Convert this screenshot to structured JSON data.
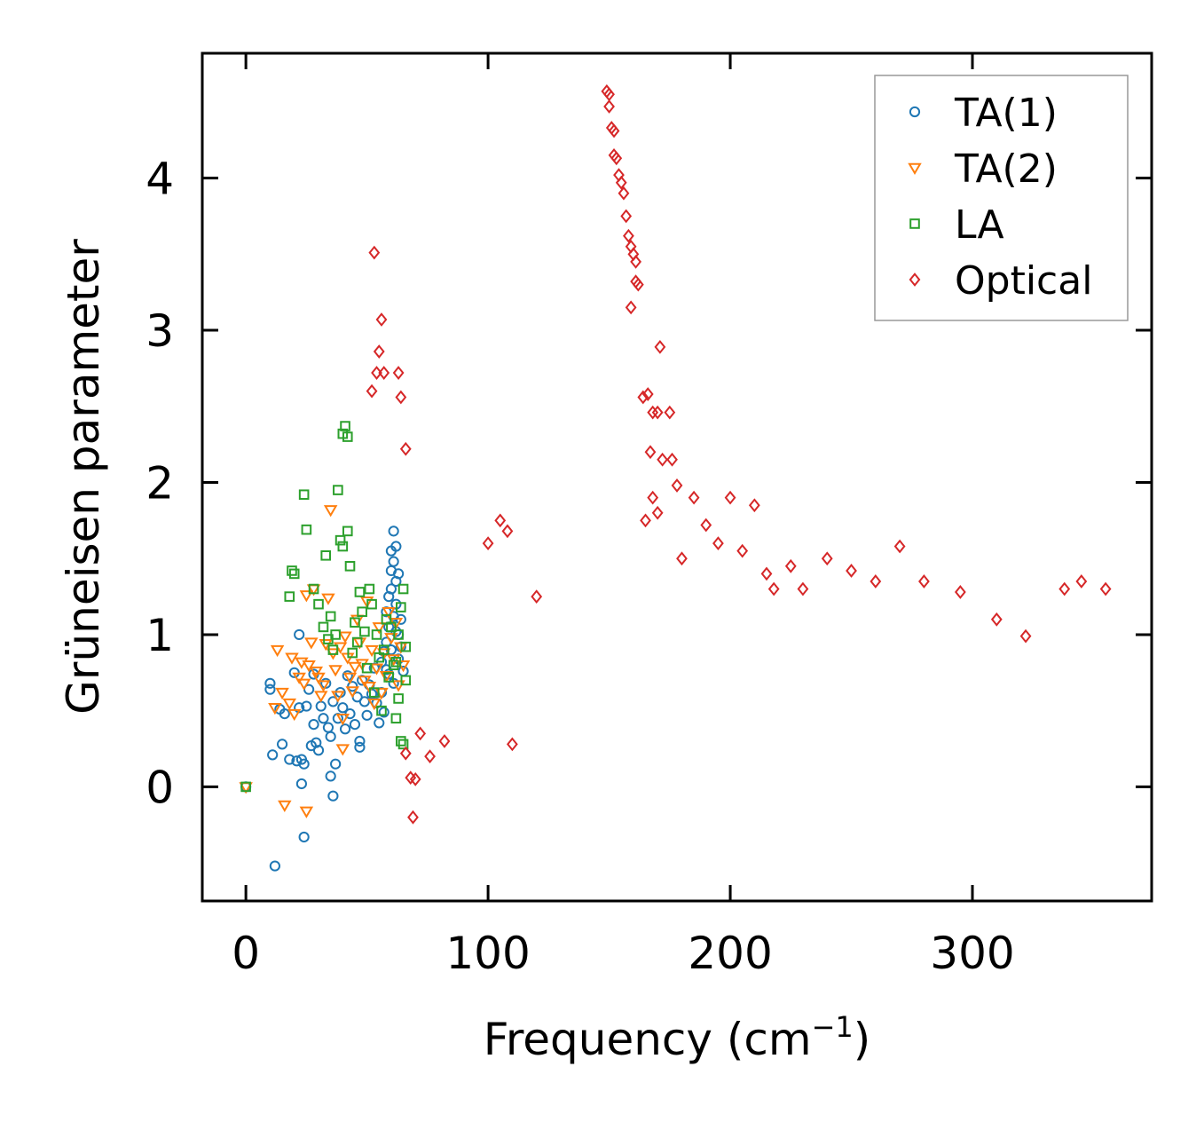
{
  "chart_data": {
    "type": "scatter",
    "title": "",
    "xlabel": "Frequency (cm",
    "xlabel_sup": "−1",
    "xlabel_end": ")",
    "ylabel": "Grüneisen parameter",
    "xlim": [
      -18,
      374
    ],
    "ylim": [
      -0.75,
      4.82
    ],
    "xticks": [
      0,
      100,
      200,
      300
    ],
    "xtick_labels": [
      "0",
      "100",
      "200",
      "300"
    ],
    "yticks": [
      0,
      1,
      2,
      3,
      4
    ],
    "ytick_labels": [
      "0",
      "1",
      "2",
      "3",
      "4"
    ],
    "grid": false,
    "legend_position": "top-right",
    "series": [
      {
        "name": "TA(1)",
        "marker": "circle",
        "color": "#1f77b4",
        "points": [
          [
            0,
            0
          ],
          [
            10,
            0.68
          ],
          [
            10,
            0.64
          ],
          [
            11,
            0.21
          ],
          [
            12,
            -0.52
          ],
          [
            14,
            0.51
          ],
          [
            15,
            0.28
          ],
          [
            16,
            0.48
          ],
          [
            18,
            0.18
          ],
          [
            20,
            0.75
          ],
          [
            21,
            0.17
          ],
          [
            22,
            0.52
          ],
          [
            22,
            1.0
          ],
          [
            23,
            0.02
          ],
          [
            23,
            0.18
          ],
          [
            24,
            0.15
          ],
          [
            24,
            -0.33
          ],
          [
            25,
            0.53
          ],
          [
            26,
            0.64
          ],
          [
            27,
            0.27
          ],
          [
            28,
            0.41
          ],
          [
            28,
            0.74
          ],
          [
            29,
            0.29
          ],
          [
            30,
            0.24
          ],
          [
            31,
            0.53
          ],
          [
            32,
            0.45
          ],
          [
            33,
            0.68
          ],
          [
            34,
            0.39
          ],
          [
            35,
            0.33
          ],
          [
            35,
            0.07
          ],
          [
            36,
            0.56
          ],
          [
            36,
            -0.06
          ],
          [
            37,
            0.15
          ],
          [
            38,
            0.45
          ],
          [
            39,
            0.62
          ],
          [
            40,
            0.52
          ],
          [
            41,
            0.38
          ],
          [
            42,
            0.73
          ],
          [
            43,
            0.48
          ],
          [
            44,
            0.66
          ],
          [
            45,
            0.41
          ],
          [
            46,
            0.59
          ],
          [
            47,
            0.3
          ],
          [
            47,
            0.26
          ],
          [
            48,
            0.7
          ],
          [
            49,
            0.56
          ],
          [
            50,
            0.47
          ],
          [
            51,
            0.67
          ],
          [
            52,
            0.61
          ],
          [
            53,
            0.78
          ],
          [
            54,
            0.55
          ],
          [
            55,
            0.42
          ],
          [
            56,
            0.82
          ],
          [
            56,
            0.62
          ],
          [
            57,
            0.89
          ],
          [
            57,
            0.49
          ],
          [
            58,
            0.77
          ],
          [
            58,
            0.95
          ],
          [
            59,
            1.05
          ],
          [
            59,
            1.25
          ],
          [
            60,
            1.42
          ],
          [
            60,
            1.55
          ],
          [
            60,
            1.3
          ],
          [
            61,
            1.68
          ],
          [
            61,
            1.48
          ],
          [
            61,
            1.12
          ],
          [
            62,
            1.35
          ],
          [
            62,
            1.58
          ],
          [
            62,
            1.2
          ],
          [
            63,
            1.0
          ],
          [
            63,
            1.4
          ],
          [
            63,
            0.84
          ],
          [
            64,
            1.1
          ],
          [
            64,
            0.92
          ],
          [
            65,
            0.76
          ],
          [
            60,
            0.9
          ],
          [
            61,
            0.68
          ],
          [
            62,
            1.02
          ],
          [
            58,
            1.15
          ],
          [
            59,
            0.74
          ]
        ]
      },
      {
        "name": "TA(2)",
        "marker": "triangle",
        "color": "#ff7f0e",
        "points": [
          [
            0,
            0
          ],
          [
            12,
            0.52
          ],
          [
            13,
            0.9
          ],
          [
            15,
            0.62
          ],
          [
            16,
            -0.12
          ],
          [
            18,
            0.55
          ],
          [
            19,
            0.85
          ],
          [
            20,
            0.48
          ],
          [
            22,
            0.72
          ],
          [
            23,
            0.82
          ],
          [
            24,
            0.68
          ],
          [
            25,
            -0.16
          ],
          [
            25,
            1.26
          ],
          [
            26,
            0.8
          ],
          [
            27,
            0.95
          ],
          [
            28,
            1.3
          ],
          [
            29,
            0.76
          ],
          [
            30,
            0.72
          ],
          [
            31,
            0.6
          ],
          [
            32,
            0.67
          ],
          [
            33,
            0.94
          ],
          [
            34,
            1.24
          ],
          [
            35,
            1.82
          ],
          [
            36,
            0.88
          ],
          [
            37,
            0.77
          ],
          [
            38,
            0.6
          ],
          [
            39,
            0.92
          ],
          [
            40,
            0.45
          ],
          [
            40,
            0.25
          ],
          [
            41,
            0.99
          ],
          [
            42,
            0.85
          ],
          [
            43,
            0.72
          ],
          [
            44,
            0.63
          ],
          [
            45,
            0.79
          ],
          [
            46,
            1.1
          ],
          [
            47,
            0.95
          ],
          [
            48,
            0.81
          ],
          [
            49,
            0.7
          ],
          [
            50,
            1.22
          ],
          [
            51,
            0.66
          ],
          [
            52,
            0.9
          ],
          [
            53,
            0.55
          ],
          [
            54,
            0.78
          ],
          [
            55,
            1.05
          ],
          [
            56,
            0.62
          ],
          [
            57,
            0.88
          ],
          [
            58,
            0.73
          ],
          [
            59,
            1.15
          ],
          [
            60,
            0.98
          ],
          [
            61,
            0.84
          ],
          [
            62,
            1.08
          ],
          [
            63,
            0.67
          ],
          [
            64,
            0.92
          ],
          [
            65,
            0.8
          ]
        ]
      },
      {
        "name": "LA",
        "marker": "square",
        "color": "#2ca02c",
        "points": [
          [
            0,
            0
          ],
          [
            18,
            1.25
          ],
          [
            19,
            1.42
          ],
          [
            20,
            1.4
          ],
          [
            24,
            1.92
          ],
          [
            25,
            1.69
          ],
          [
            28,
            1.3
          ],
          [
            30,
            1.2
          ],
          [
            32,
            1.05
          ],
          [
            33,
            1.52
          ],
          [
            34,
            0.97
          ],
          [
            35,
            1.12
          ],
          [
            36,
            0.9
          ],
          [
            37,
            1.0
          ],
          [
            38,
            1.95
          ],
          [
            39,
            1.62
          ],
          [
            40,
            1.58
          ],
          [
            40,
            2.32
          ],
          [
            41,
            2.37
          ],
          [
            42,
            2.3
          ],
          [
            42,
            1.68
          ],
          [
            43,
            1.45
          ],
          [
            44,
            0.88
          ],
          [
            45,
            1.08
          ],
          [
            46,
            0.95
          ],
          [
            47,
            1.28
          ],
          [
            48,
            1.15
          ],
          [
            49,
            1.02
          ],
          [
            50,
            0.78
          ],
          [
            51,
            1.3
          ],
          [
            52,
            1.2
          ],
          [
            53,
            0.62
          ],
          [
            54,
            1.0
          ],
          [
            55,
            0.85
          ],
          [
            56,
            0.5
          ],
          [
            57,
            0.9
          ],
          [
            58,
            1.1
          ],
          [
            59,
            0.72
          ],
          [
            60,
            1.05
          ],
          [
            61,
            0.8
          ],
          [
            62,
            0.45
          ],
          [
            63,
            1.0
          ],
          [
            64,
            0.3
          ],
          [
            65,
            0.28
          ],
          [
            65,
            1.3
          ],
          [
            66,
            0.92
          ],
          [
            66,
            0.7
          ],
          [
            64,
            1.18
          ],
          [
            63,
            0.58
          ],
          [
            62,
            0.82
          ]
        ]
      },
      {
        "name": "Optical",
        "marker": "diamond",
        "color": "#d62728",
        "points": [
          [
            53,
            3.51
          ],
          [
            56,
            3.07
          ],
          [
            55,
            2.86
          ],
          [
            54,
            2.72
          ],
          [
            52,
            2.6
          ],
          [
            57,
            2.72
          ],
          [
            63,
            2.72
          ],
          [
            64,
            2.56
          ],
          [
            66,
            2.22
          ],
          [
            68,
            0.06
          ],
          [
            69,
            -0.2
          ],
          [
            70,
            0.05
          ],
          [
            149,
            4.57
          ],
          [
            150,
            4.55
          ],
          [
            150,
            4.47
          ],
          [
            151,
            4.33
          ],
          [
            152,
            4.31
          ],
          [
            152,
            4.15
          ],
          [
            153,
            4.13
          ],
          [
            154,
            4.02
          ],
          [
            155,
            3.97
          ],
          [
            156,
            3.9
          ],
          [
            157,
            3.75
          ],
          [
            158,
            3.62
          ],
          [
            159,
            3.55
          ],
          [
            159,
            3.15
          ],
          [
            160,
            3.5
          ],
          [
            161,
            3.45
          ],
          [
            161,
            3.32
          ],
          [
            162,
            3.3
          ],
          [
            171,
            2.89
          ],
          [
            164,
            2.56
          ],
          [
            166,
            2.58
          ],
          [
            168,
            2.46
          ],
          [
            170,
            2.46
          ],
          [
            175,
            2.46
          ],
          [
            167,
            2.2
          ],
          [
            172,
            2.15
          ],
          [
            168,
            1.9
          ],
          [
            165,
            1.75
          ],
          [
            170,
            1.8
          ],
          [
            176,
            2.15
          ],
          [
            178,
            1.98
          ],
          [
            180,
            1.5
          ],
          [
            185,
            1.9
          ],
          [
            190,
            1.72
          ],
          [
            195,
            1.6
          ],
          [
            200,
            1.9
          ],
          [
            205,
            1.55
          ],
          [
            210,
            1.85
          ],
          [
            215,
            1.4
          ],
          [
            218,
            1.3
          ],
          [
            225,
            1.45
          ],
          [
            230,
            1.3
          ],
          [
            240,
            1.5
          ],
          [
            250,
            1.42
          ],
          [
            260,
            1.35
          ],
          [
            270,
            1.58
          ],
          [
            280,
            1.35
          ],
          [
            295,
            1.28
          ],
          [
            310,
            1.1
          ],
          [
            322,
            0.99
          ],
          [
            338,
            1.3
          ],
          [
            345,
            1.35
          ],
          [
            355,
            1.3
          ],
          [
            120,
            1.25
          ],
          [
            110,
            0.28
          ],
          [
            82,
            0.3
          ],
          [
            76,
            0.2
          ],
          [
            72,
            0.35
          ],
          [
            66,
            0.22
          ],
          [
            105,
            1.75
          ],
          [
            108,
            1.68
          ],
          [
            100,
            1.6
          ]
        ]
      }
    ]
  }
}
